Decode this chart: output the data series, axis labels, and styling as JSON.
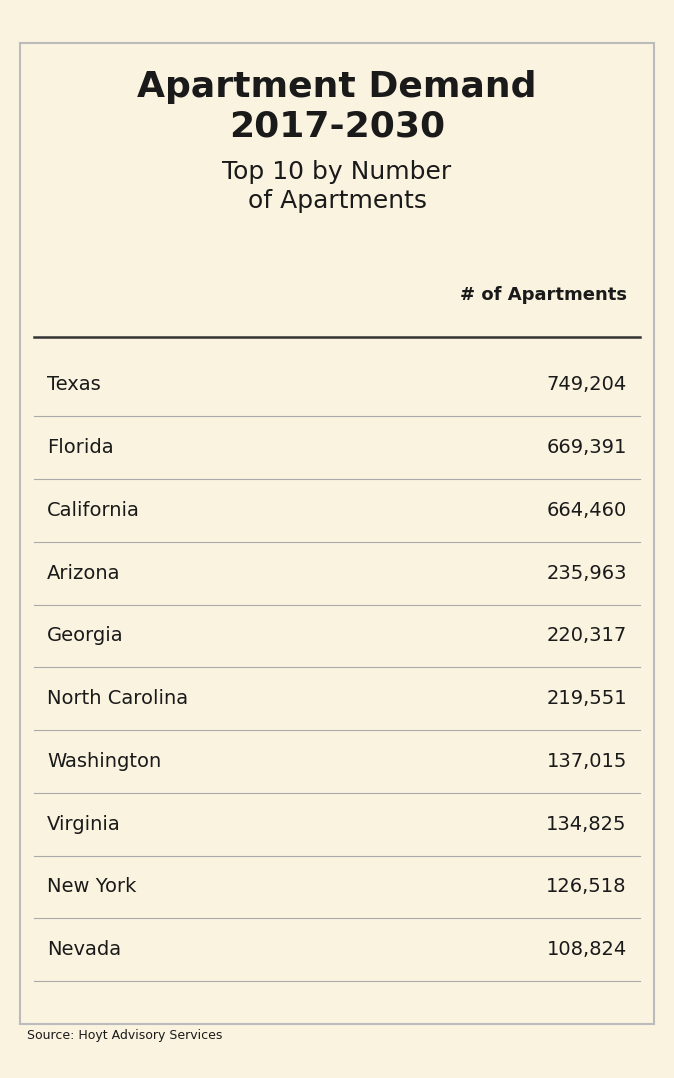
{
  "title_bold": "Apartment Demand\n2017-2030",
  "title_regular": "Top 10 by Number\nof Apartments",
  "column_header": "# of Apartments",
  "states": [
    "Texas",
    "Florida",
    "California",
    "Arizona",
    "Georgia",
    "North Carolina",
    "Washington",
    "Virginia",
    "New York",
    "Nevada"
  ],
  "values": [
    "749,204",
    "669,391",
    "664,460",
    "235,963",
    "220,317",
    "219,551",
    "137,015",
    "134,825",
    "126,518",
    "108,824"
  ],
  "source": "Source: Hoyt Advisory Services",
  "background_color": "#faf3e0",
  "border_color": "#bbbbbb",
  "text_color": "#1a1a1a",
  "line_color": "#aaaaaa",
  "heavy_line_color": "#333333"
}
